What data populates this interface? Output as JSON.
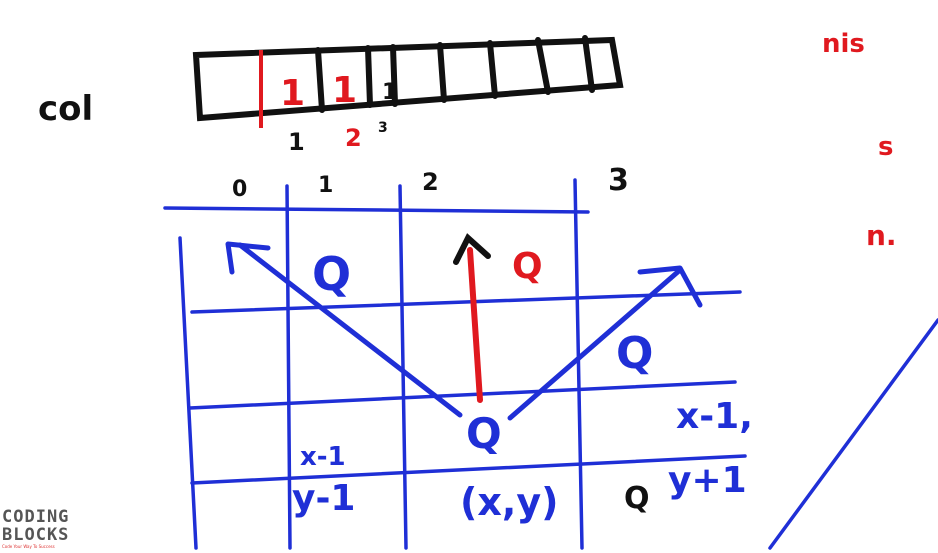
{
  "board": {
    "left_label": "col",
    "array_cells": [
      "1",
      "1",
      "1"
    ],
    "array_indices": [
      "1",
      "2",
      "3"
    ],
    "column_headers": [
      "0",
      "1",
      "2",
      "3"
    ],
    "right_notes": [
      "nis",
      "s",
      "n."
    ],
    "queens": [
      "Q",
      "Q",
      "Q",
      "Q",
      "Q"
    ],
    "cell_notes": {
      "x_minus_1": "x-1,",
      "y_plus_1": "y+1",
      "x_minus_1_left": "x-1",
      "y_minus_1": "y-1",
      "current": "(x,y)"
    },
    "colors": {
      "black": "#111111",
      "red": "#e0191f",
      "blue": "#1f2fd6"
    }
  },
  "logo": {
    "line1": "CODING",
    "line2": "BLOCKS",
    "tagline": "Code Your Way To Success"
  }
}
